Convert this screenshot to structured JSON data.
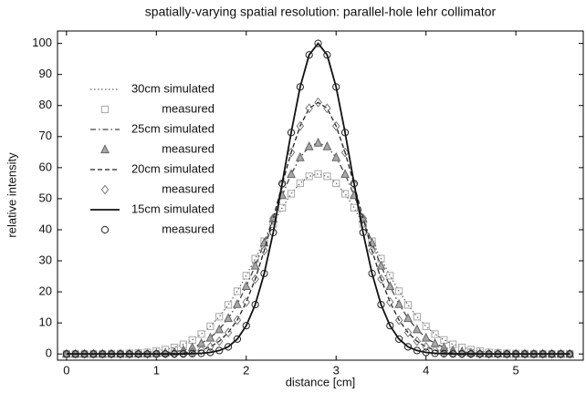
{
  "chart_data": {
    "type": "line",
    "title": "spatially-varying spatial resolution: parallel-hole lehr collimator",
    "xlabel": "distance [cm]",
    "ylabel": "relative intensity",
    "xlim": [
      -0.1,
      5.75
    ],
    "ylim": [
      -2,
      104
    ],
    "xticks": [
      0,
      1,
      2,
      3,
      4,
      5
    ],
    "yticks": [
      0,
      10,
      20,
      30,
      40,
      50,
      60,
      70,
      80,
      90,
      100
    ],
    "legend": "upper left",
    "x": [
      0,
      0.1,
      0.2,
      0.3,
      0.4,
      0.5,
      0.6,
      0.7,
      0.8,
      0.9,
      1,
      1.1,
      1.2,
      1.3,
      1.4,
      1.5,
      1.6,
      1.7,
      1.8,
      1.9,
      2,
      2.1,
      2.2,
      2.3,
      2.4,
      2.5,
      2.6,
      2.7,
      2.8,
      2.9,
      3,
      3.1,
      3.2,
      3.3,
      3.4,
      3.5,
      3.6,
      3.7,
      3.8,
      3.9,
      4,
      4.1,
      4.2,
      4.3,
      4.4,
      4.5,
      4.6,
      4.7,
      4.8,
      4.9,
      5,
      5.1,
      5.2,
      5.3,
      5.4,
      5.5,
      5.6
    ],
    "series": [
      {
        "name": "30cm simulated",
        "color": "#666666",
        "dash": "dotted",
        "values": [
          0,
          0,
          0,
          0,
          0,
          0.1,
          0.1,
          0.2,
          0.3,
          0.5,
          0.9,
          1.4,
          2.1,
          3.1,
          4.5,
          6.4,
          8.9,
          12.0,
          15.8,
          20.2,
          25.2,
          30.7,
          36.3,
          41.9,
          47.1,
          51.6,
          55.0,
          57.2,
          58,
          57.2,
          55.0,
          51.6,
          47.1,
          41.9,
          36.3,
          30.7,
          25.2,
          20.2,
          15.8,
          12.0,
          8.9,
          6.4,
          4.5,
          3.1,
          2.1,
          1.4,
          0.9,
          0.5,
          0.3,
          0.2,
          0.1,
          0.1,
          0,
          0,
          0,
          0,
          0
        ]
      },
      {
        "name": "measured",
        "color": "#a8a8a8",
        "marker": "square",
        "values": [
          0,
          0,
          0,
          0,
          0,
          0.1,
          0.1,
          0.2,
          0.3,
          0.5,
          0.9,
          1.4,
          2.1,
          3.1,
          4.5,
          6.4,
          8.9,
          12.0,
          15.8,
          20.2,
          25.2,
          30.7,
          36.3,
          41.9,
          47.1,
          51.6,
          55.0,
          57.2,
          58,
          57.2,
          55.0,
          51.6,
          47.1,
          41.9,
          36.3,
          30.7,
          25.2,
          20.2,
          15.8,
          12.0,
          8.9,
          6.4,
          4.5,
          3.1,
          2.1,
          1.4,
          0.9,
          0.5,
          0.3,
          0.2,
          0.1,
          0.1,
          0,
          0,
          0,
          0,
          0
        ]
      },
      {
        "name": "25cm simulated",
        "color": "#444444",
        "dash": "dashdot",
        "values": [
          0,
          0,
          0,
          0,
          0,
          0,
          0,
          0,
          0.1,
          0.1,
          0.2,
          0.4,
          0.7,
          1.2,
          2.1,
          3.4,
          5.2,
          7.9,
          11.5,
          16.0,
          21.8,
          28.4,
          35.8,
          43.6,
          51.1,
          57.9,
          63.3,
          66.8,
          68,
          66.8,
          63.3,
          57.9,
          51.1,
          43.6,
          35.8,
          28.4,
          21.8,
          16.0,
          11.5,
          7.9,
          5.2,
          3.4,
          2.1,
          1.2,
          0.7,
          0.4,
          0.2,
          0.1,
          0.1,
          0,
          0,
          0,
          0,
          0,
          0,
          0,
          0
        ]
      },
      {
        "name": "measured",
        "color": "#8c8c8c",
        "marker": "triangle",
        "values": [
          0,
          0,
          0,
          0,
          0,
          0,
          0,
          0,
          0.1,
          0.1,
          0.2,
          0.4,
          0.7,
          1.2,
          2.1,
          3.4,
          5.2,
          7.9,
          11.5,
          16.0,
          21.8,
          28.4,
          35.8,
          43.6,
          51.1,
          57.9,
          63.3,
          66.8,
          68,
          66.8,
          63.3,
          57.9,
          51.1,
          43.6,
          35.8,
          28.4,
          21.8,
          16.0,
          11.5,
          7.9,
          5.2,
          3.4,
          2.1,
          1.2,
          0.7,
          0.4,
          0.2,
          0.1,
          0.1,
          0,
          0,
          0,
          0,
          0,
          0,
          0,
          0
        ]
      },
      {
        "name": "20cm simulated",
        "color": "#222222",
        "dash": "dashed",
        "values": [
          0,
          0,
          0,
          0,
          0,
          0,
          0,
          0,
          0,
          0,
          0,
          0.1,
          0.1,
          0.3,
          0.6,
          1.2,
          2.3,
          4.1,
          6.9,
          10.9,
          16.7,
          24.1,
          33.3,
          43.7,
          54.6,
          64.9,
          73.4,
          79.1,
          81,
          79.1,
          73.4,
          64.9,
          54.6,
          43.7,
          33.3,
          24.1,
          16.7,
          10.9,
          6.9,
          4.1,
          2.3,
          1.2,
          0.6,
          0.3,
          0.1,
          0.1,
          0,
          0,
          0,
          0,
          0,
          0,
          0,
          0,
          0,
          0,
          0
        ]
      },
      {
        "name": "measured",
        "color": "#777777",
        "marker": "diamond",
        "values": [
          0,
          0,
          0,
          0,
          0,
          0,
          0,
          0,
          0,
          0,
          0,
          0.1,
          0.1,
          0.3,
          0.6,
          1.2,
          2.3,
          4.1,
          6.9,
          10.9,
          16.7,
          24.1,
          33.3,
          43.7,
          54.6,
          64.9,
          73.4,
          79.1,
          81,
          79.1,
          73.4,
          64.9,
          54.6,
          43.7,
          33.3,
          24.1,
          16.7,
          10.9,
          6.9,
          4.1,
          2.3,
          1.2,
          0.6,
          0.3,
          0.1,
          0.1,
          0,
          0,
          0,
          0,
          0,
          0,
          0,
          0,
          0,
          0,
          0
        ]
      },
      {
        "name": "15cm simulated",
        "color": "#111111",
        "dash": "solid",
        "values": [
          0,
          0,
          0,
          0,
          0,
          0,
          0,
          0,
          0,
          0,
          0,
          0,
          0,
          0,
          0.1,
          0.2,
          0.5,
          1.1,
          2.3,
          4.8,
          9.1,
          15.9,
          25.9,
          39.1,
          54.9,
          71.3,
          86.0,
          96.3,
          100,
          96.3,
          86.0,
          71.3,
          54.9,
          39.1,
          25.9,
          15.9,
          9.1,
          4.8,
          2.3,
          1.1,
          0.5,
          0.2,
          0.1,
          0,
          0,
          0,
          0,
          0,
          0,
          0,
          0,
          0,
          0,
          0,
          0,
          0,
          0
        ]
      },
      {
        "name": "measured",
        "color": "#222222",
        "marker": "circle",
        "values": [
          0,
          0,
          0,
          0,
          0,
          0,
          0,
          0,
          0,
          0,
          0,
          0,
          0,
          0,
          0.1,
          0.2,
          0.5,
          1.1,
          2.3,
          4.8,
          9.1,
          15.9,
          25.9,
          39.1,
          54.9,
          71.3,
          86.0,
          96.3,
          100,
          96.3,
          86.0,
          71.3,
          54.9,
          39.1,
          25.9,
          15.9,
          9.1,
          4.8,
          2.3,
          1.1,
          0.5,
          0.2,
          0.1,
          0,
          0,
          0,
          0,
          0,
          0,
          0,
          0,
          0,
          0,
          0,
          0,
          0,
          0
        ]
      }
    ]
  }
}
